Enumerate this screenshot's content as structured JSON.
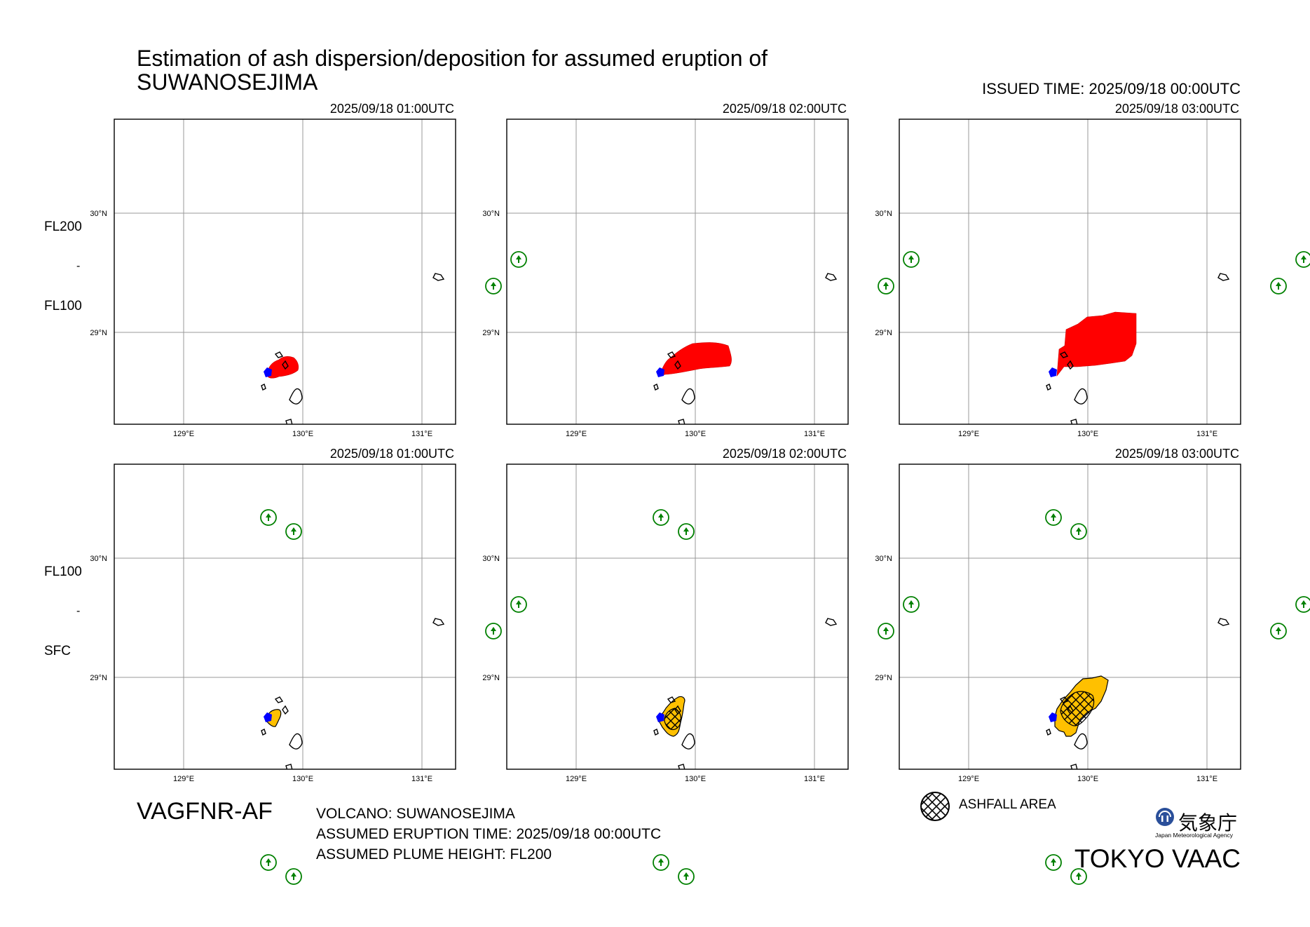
{
  "header": {
    "title": "Estimation of ash dispersion/deposition for assumed eruption of\nSUWANOSEJIMA",
    "issued_time": "ISSUED TIME: 2025/09/18 00:00UTC"
  },
  "panels": {
    "times": [
      "2025/09/18 01:00UTC",
      "2025/09/18 02:00UTC",
      "2025/09/18 03:00UTC"
    ],
    "upper_layer": {
      "top": "FL200",
      "separator": "-",
      "bottom": "FL100",
      "plume_color": "#ff0000"
    },
    "lower_layer": {
      "top": "FL100",
      "separator": "-",
      "bottom": "SFC",
      "plume_color": "#ffc000"
    },
    "lat_labels": [
      "30°N",
      "29°N"
    ],
    "lon_labels": [
      "129°E",
      "130°E",
      "131°E"
    ],
    "volcano_marker_color": "#0000ff",
    "station_marker_color": "#008000"
  },
  "footer": {
    "product_code": "VAGFNR-AF",
    "volcano": "VOLCANO: SUWANOSEJIMA",
    "eruption_time": "ASSUMED ERUPTION TIME: 2025/09/18 00:00UTC",
    "plume_height": "ASSUMED PLUME HEIGHT: FL200",
    "legend_ashfall": "ASHFALL AREA",
    "agency_kanji": "気象庁",
    "agency_english": "Japan Meteorological Agency",
    "vaac": "TOKYO VAAC"
  }
}
